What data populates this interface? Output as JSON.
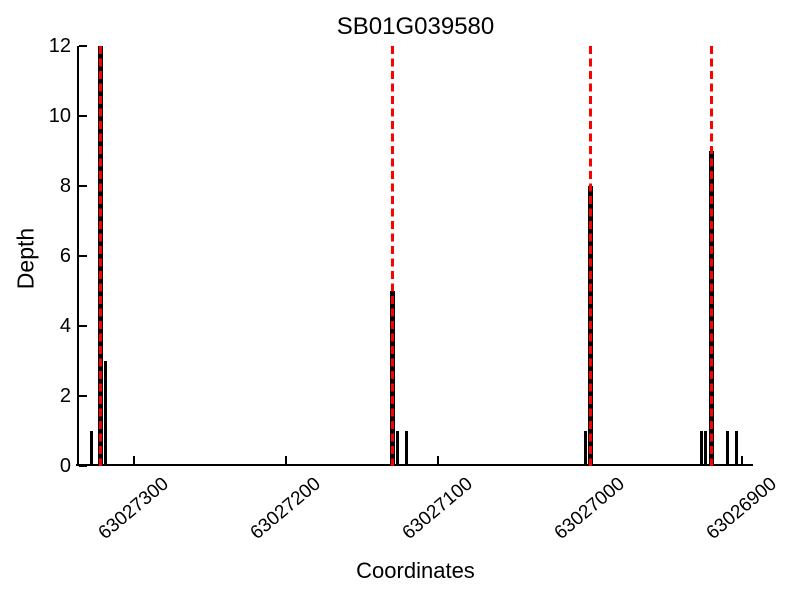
{
  "figure": {
    "title": "SB01G039580",
    "xlabel": "Coordinates",
    "ylabel": "Depth"
  },
  "chart_data": {
    "type": "bar",
    "title": "SB01G039580",
    "xlabel": "Coordinates",
    "ylabel": "Depth",
    "x_axis_reversed": true,
    "xlim": [
      63027337,
      63026893
    ],
    "ylim": [
      0,
      12
    ],
    "x_ticks": [
      63027300,
      63027200,
      63027100,
      63027000,
      63026900
    ],
    "y_ticks": [
      0,
      2,
      4,
      6,
      8,
      10,
      12
    ],
    "grid": false,
    "legend": null,
    "bar_color": "#000000",
    "marker_line_color": "#ff0000",
    "marker_line_style": "dashed",
    "marker_positions": [
      63027322,
      63027130,
      63027000,
      63026920
    ],
    "bars": [
      {
        "x": 63027328,
        "depth": 1
      },
      {
        "x": 63027322,
        "depth": 12
      },
      {
        "x": 63027319,
        "depth": 3
      },
      {
        "x": 63027130,
        "depth": 5
      },
      {
        "x": 63027127,
        "depth": 1
      },
      {
        "x": 63027121,
        "depth": 1
      },
      {
        "x": 63027003,
        "depth": 1
      },
      {
        "x": 63027000,
        "depth": 8
      },
      {
        "x": 63026927,
        "depth": 1
      },
      {
        "x": 63026924,
        "depth": 1
      },
      {
        "x": 63026920,
        "depth": 9
      },
      {
        "x": 63026910,
        "depth": 1
      },
      {
        "x": 63026904,
        "depth": 1
      }
    ]
  }
}
